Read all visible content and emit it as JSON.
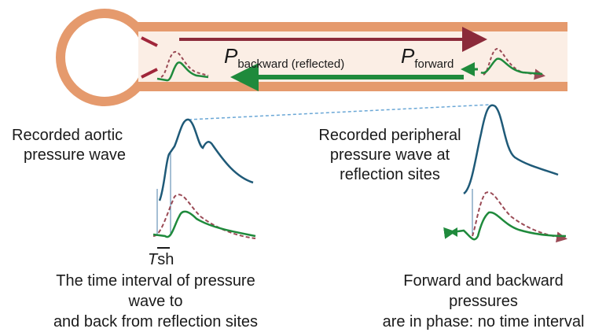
{
  "labels": {
    "backward": {
      "symbol": "P",
      "subscript": "backward (reflected)"
    },
    "forward": {
      "symbol": "P",
      "subscript": "forward"
    },
    "aortic": {
      "lines": [
        "Recorded aortic",
        "pressure wave"
      ]
    },
    "peripheral": {
      "lines": [
        "Recorded peripheral",
        "pressure wave at",
        "reflection sites"
      ]
    },
    "tsh": {
      "symbol": "T",
      "subscript": "sh"
    },
    "left_caption": {
      "lines": [
        "The time interval of pressure",
        "wave to",
        "and back from reflection sites"
      ]
    },
    "right_caption": {
      "lines": [
        "Forward and backward",
        "pressures",
        "are in phase: no time interval"
      ]
    }
  }
}
